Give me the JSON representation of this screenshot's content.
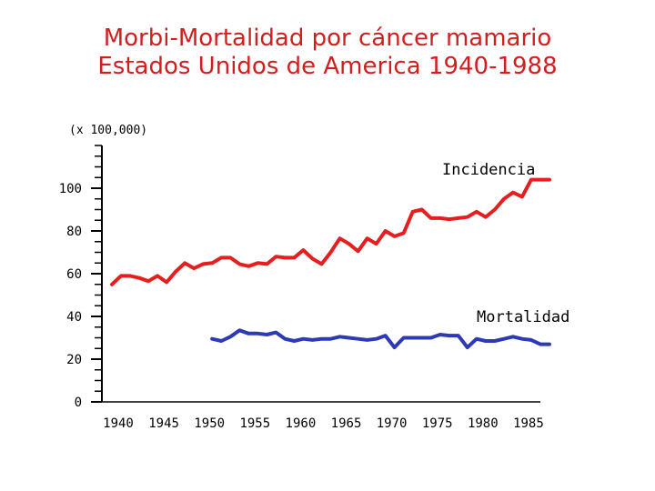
{
  "chart_data": {
    "type": "line",
    "title_line1": "Morbi-Mortalidad por cáncer mamario",
    "title_line2": "Estados Unidos de America 1940-1988",
    "unit_label": "(x 100,000)",
    "xlabel": "",
    "ylabel": "",
    "xlim": [
      1939.6,
      1988.8
    ],
    "ylim": [
      0,
      120
    ],
    "y_ticks": [
      0,
      20,
      40,
      60,
      80,
      100
    ],
    "x_ticks": [
      1940,
      1945,
      1950,
      1955,
      1960,
      1965,
      1970,
      1975,
      1980,
      1985
    ],
    "x_tick_labels": [
      "1940",
      "1945",
      "1950",
      "1955",
      "1960",
      "1965",
      "1970",
      "1975",
      "1980",
      "1985"
    ],
    "series": [
      {
        "name": "Incidencia",
        "color": "#e61e1e",
        "x": [
          1940,
          1941,
          1942,
          1943,
          1944,
          1945,
          1946,
          1947,
          1948,
          1949,
          1950,
          1951,
          1952,
          1953,
          1954,
          1955,
          1956,
          1957,
          1958,
          1959,
          1960,
          1961,
          1962,
          1963,
          1964,
          1965,
          1966,
          1967,
          1968,
          1969,
          1970,
          1971,
          1972,
          1973,
          1974,
          1975,
          1976,
          1977,
          1978,
          1979,
          1980,
          1981,
          1982,
          1983,
          1984,
          1985,
          1986,
          1987,
          1988
        ],
        "values": [
          55,
          59,
          59,
          58,
          56.5,
          59,
          56,
          61,
          65,
          62.5,
          64.5,
          65,
          67.5,
          67.5,
          64.5,
          63.5,
          65,
          64.5,
          68,
          67.5,
          67.5,
          71,
          67,
          64.5,
          70,
          76.5,
          74,
          70.5,
          76.5,
          74,
          80,
          77.5,
          79,
          89,
          90,
          86,
          86,
          85.5,
          86,
          86.5,
          89,
          86.5,
          90,
          95,
          98,
          96,
          104,
          104,
          104
        ]
      },
      {
        "name": "Mortalidad",
        "color": "#2e3ab4",
        "x": [
          1951,
          1952,
          1953,
          1954,
          1955,
          1956,
          1957,
          1958,
          1959,
          1960,
          1961,
          1962,
          1963,
          1964,
          1965,
          1966,
          1967,
          1968,
          1969,
          1970,
          1971,
          1972,
          1973,
          1974,
          1975,
          1976,
          1977,
          1978,
          1979,
          1980,
          1981,
          1982,
          1983,
          1984,
          1985,
          1986,
          1987,
          1988
        ],
        "values": [
          29.5,
          28.5,
          30.5,
          33.5,
          32,
          32,
          31.5,
          32.5,
          29.5,
          28.5,
          29.5,
          29,
          29.5,
          29.5,
          30.5,
          30,
          29.5,
          29,
          29.5,
          31,
          25.5,
          30,
          30,
          30,
          30,
          31.5,
          31,
          31,
          25.5,
          29.5,
          28.5,
          28.5,
          29.5,
          30.5,
          29.5,
          29,
          27,
          27
        ]
      }
    ]
  }
}
